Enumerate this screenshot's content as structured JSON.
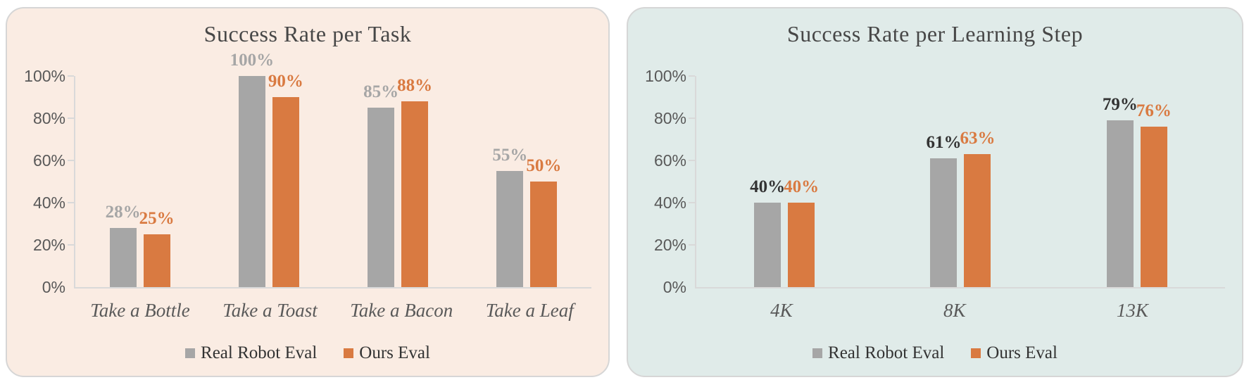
{
  "page": {
    "background": "#ffffff"
  },
  "colors": {
    "series_gray": "#a6a6a6",
    "series_orange": "#d97a41",
    "axis_line": "#d9d9d9",
    "axis_text": "#595959",
    "title_text": "#474747",
    "legend_text": "#333333"
  },
  "chart_data": [
    {
      "type": "bar",
      "title": "Success Rate per Task",
      "categories": [
        "Take a Bottle",
        "Take a Toast",
        "Take a Bacon",
        "Take a Leaf"
      ],
      "series": [
        {
          "name": "Real Robot Eval",
          "values": [
            28,
            100,
            85,
            55
          ],
          "color": "#a6a6a6",
          "label_color": "#a6a6a6"
        },
        {
          "name": "Ours Eval",
          "values": [
            25,
            90,
            88,
            50
          ],
          "color": "#d97a41",
          "label_color": "#d97a41"
        }
      ],
      "data_labels": {
        "real_robot_eval": [
          "28%",
          "100%",
          "85%",
          "55%"
        ],
        "ours_eval": [
          "25%",
          "90%",
          "88%",
          "50%"
        ]
      },
      "xlabel": "",
      "ylabel": "",
      "ylim": [
        0,
        100
      ],
      "yticks": [
        "0%",
        "20%",
        "40%",
        "60%",
        "80%",
        "100%"
      ],
      "grid": false,
      "legend_position": "bottom",
      "panel_background": "#faece3",
      "panel_border": "#d6d6d6"
    },
    {
      "type": "bar",
      "title": "Success Rate per Learning Step",
      "categories": [
        "4K",
        "8K",
        "13K"
      ],
      "series": [
        {
          "name": "Real Robot Eval",
          "values": [
            40,
            61,
            79
          ],
          "color": "#a6a6a6",
          "label_color": "#333333"
        },
        {
          "name": "Ours Eval",
          "values": [
            40,
            63,
            76
          ],
          "color": "#d97a41",
          "label_color": "#d97a41"
        }
      ],
      "data_labels": {
        "real_robot_eval": [
          "40%",
          "61%",
          "79%"
        ],
        "ours_eval": [
          "40%",
          "63%",
          "76%"
        ]
      },
      "xlabel": "",
      "ylabel": "",
      "ylim": [
        0,
        100
      ],
      "yticks": [
        "0%",
        "20%",
        "40%",
        "60%",
        "80%",
        "100%"
      ],
      "grid": false,
      "legend_position": "bottom",
      "panel_background": "#e0ebe9",
      "panel_border": "#d6d6d6"
    }
  ]
}
